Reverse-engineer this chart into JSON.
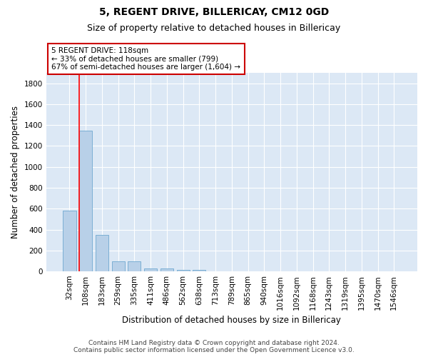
{
  "title1": "5, REGENT DRIVE, BILLERICAY, CM12 0GD",
  "title2": "Size of property relative to detached houses in Billericay",
  "xlabel": "Distribution of detached houses by size in Billericay",
  "ylabel": "Number of detached properties",
  "categories": [
    "32sqm",
    "108sqm",
    "183sqm",
    "259sqm",
    "335sqm",
    "411sqm",
    "486sqm",
    "562sqm",
    "638sqm",
    "713sqm",
    "789sqm",
    "865sqm",
    "940sqm",
    "1016sqm",
    "1092sqm",
    "1168sqm",
    "1243sqm",
    "1319sqm",
    "1395sqm",
    "1470sqm",
    "1546sqm"
  ],
  "values": [
    580,
    1350,
    350,
    95,
    95,
    30,
    25,
    15,
    15,
    0,
    0,
    0,
    0,
    0,
    0,
    0,
    0,
    0,
    0,
    0,
    0
  ],
  "bar_color": "#b8d0e8",
  "bar_edge_color": "#7bafd4",
  "figure_bg": "#ffffff",
  "axes_bg": "#dce8f5",
  "grid_color": "#ffffff",
  "red_line_index": 1,
  "annotation_text": "5 REGENT DRIVE: 118sqm\n← 33% of detached houses are smaller (799)\n67% of semi-detached houses are larger (1,604) →",
  "annotation_box_facecolor": "#ffffff",
  "annotation_box_edgecolor": "#cc0000",
  "ylim": [
    0,
    1900
  ],
  "yticks": [
    0,
    200,
    400,
    600,
    800,
    1000,
    1200,
    1400,
    1600,
    1800
  ],
  "footnote": "Contains HM Land Registry data © Crown copyright and database right 2024.\nContains public sector information licensed under the Open Government Licence v3.0.",
  "title1_fontsize": 10,
  "title2_fontsize": 9,
  "xlabel_fontsize": 8.5,
  "ylabel_fontsize": 8.5,
  "tick_fontsize": 7.5,
  "annotation_fontsize": 7.5,
  "footnote_fontsize": 6.5
}
